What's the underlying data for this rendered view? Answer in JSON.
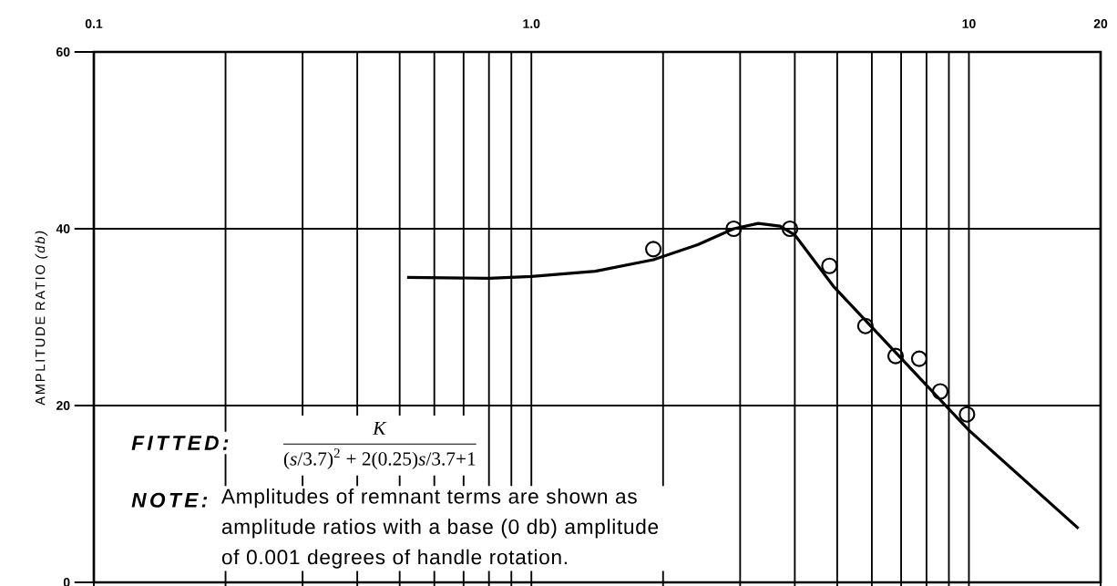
{
  "chart_data": {
    "type": "scatter",
    "ylabel": "AMPLITUDE RATIO *(db)*",
    "log": "x",
    "grid": true,
    "xlim": [
      0.1,
      20
    ],
    "ylim": [
      0,
      60
    ],
    "xticks": [
      0.1,
      {
        "value": 0.2,
        "label": null
      },
      {
        "value": 0.3,
        "label": null
      },
      {
        "value": 0.4,
        "label": null
      },
      {
        "value": 0.5,
        "label": null
      },
      {
        "value": 0.6,
        "label": null
      },
      {
        "value": 0.7,
        "label": null
      },
      {
        "value": 0.8,
        "label": null
      },
      {
        "value": 0.9,
        "label": null
      },
      {
        "value": 1,
        "label": "1.0"
      },
      {
        "value": 2,
        "label": null
      },
      {
        "value": 3,
        "label": null
      },
      {
        "value": 4,
        "label": null
      },
      {
        "value": 5,
        "label": null
      },
      {
        "value": 6,
        "label": null
      },
      {
        "value": 7,
        "label": null
      },
      {
        "value": 8,
        "label": null
      },
      {
        "value": 9,
        "label": null
      },
      10,
      20
    ],
    "yticks": [
      0,
      20,
      40,
      60
    ],
    "series": [
      {
        "type": "line",
        "marker": "none",
        "color": "#000000",
        "x": [
          0.52,
          0.8,
          1.0,
          1.4,
          1.9,
          2.4,
          2.9,
          3.3,
          3.7,
          4.0,
          4.9,
          10,
          17.8
        ],
        "values": [
          34.5,
          34.4,
          34.6,
          35.2,
          36.5,
          38.2,
          40.0,
          40.6,
          40.3,
          39.3,
          33.5,
          17.2,
          6.1
        ]
      },
      {
        "type": "scatter",
        "marker": "circle",
        "color": "#000000",
        "x": [
          1.9,
          2.9,
          3.9,
          4.8,
          5.8,
          6.8,
          7.7,
          8.6,
          9.9
        ],
        "values": [
          37.7,
          40.0,
          40.0,
          35.8,
          29.0,
          25.6,
          25.3,
          21.6,
          19.0
        ]
      }
    ],
    "annotations": [
      "FITTED:",
      "*K*",
      "(*s*/3.7)$^{2}$ + 2(0.25)*s*/3.7+1",
      "NOTE:",
      "Amplitudes of remnant terms are shown as amplitude ratios with a base (0 db) amplitude of 0.001 degrees of handle rotation."
    ]
  }
}
